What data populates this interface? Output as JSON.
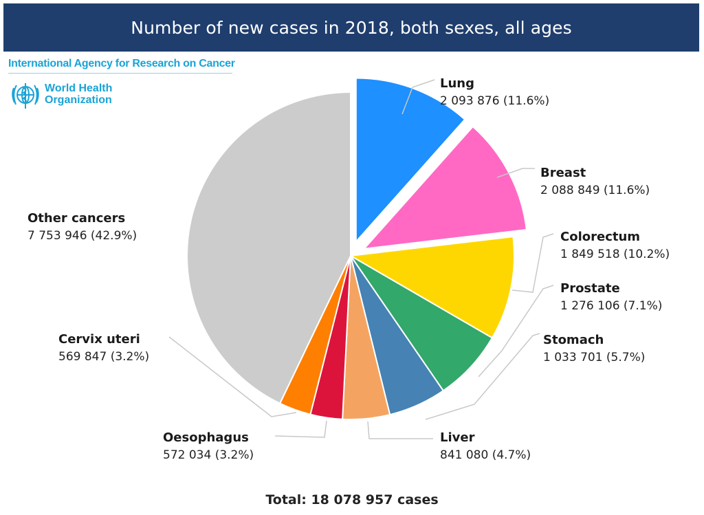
{
  "header": {
    "title": "Number of new cases in 2018, both sexes, all ages"
  },
  "branding": {
    "iarc": "International Agency for Research on Cancer",
    "who_line1": "World Health",
    "who_line2": "Organization"
  },
  "chart_data": {
    "type": "pie",
    "title": "Number of new cases in 2018, both sexes, all ages",
    "total_label": "Total: 18 078 957 cases",
    "slices": [
      {
        "name": "Lung",
        "value": 2093876,
        "value_label": "2 093 876 (11.6%)",
        "percent": 11.6,
        "color": "#1e90ff",
        "exploded": true
      },
      {
        "name": "Breast",
        "value": 2088849,
        "value_label": "2 088 849 (11.6%)",
        "percent": 11.6,
        "color": "#ff69c4",
        "exploded": true
      },
      {
        "name": "Colorectum",
        "value": 1849518,
        "value_label": "1 849 518 (10.2%)",
        "percent": 10.2,
        "color": "#ffd700",
        "exploded": false
      },
      {
        "name": "Prostate",
        "value": 1276106,
        "value_label": "1 276 106 (7.1%)",
        "percent": 7.1,
        "color": "#32a86a",
        "exploded": false
      },
      {
        "name": "Stomach",
        "value": 1033701,
        "value_label": "1 033 701 (5.7%)",
        "percent": 5.7,
        "color": "#4682b4",
        "exploded": false
      },
      {
        "name": "Liver",
        "value": 841080,
        "value_label": "841 080 (4.7%)",
        "percent": 4.7,
        "color": "#f4a460",
        "exploded": false
      },
      {
        "name": "Oesophagus",
        "value": 572034,
        "value_label": "572 034 (3.2%)",
        "percent": 3.2,
        "color": "#dc143c",
        "exploded": false
      },
      {
        "name": "Cervix uteri",
        "value": 569847,
        "value_label": "569 847 (3.2%)",
        "percent": 3.2,
        "color": "#ff7f00",
        "exploded": false
      },
      {
        "name": "Other cancers",
        "value": 7753946,
        "value_label": "7 753 946 (42.9%)",
        "percent": 42.9,
        "color": "#cccccc",
        "exploded": false
      }
    ]
  }
}
